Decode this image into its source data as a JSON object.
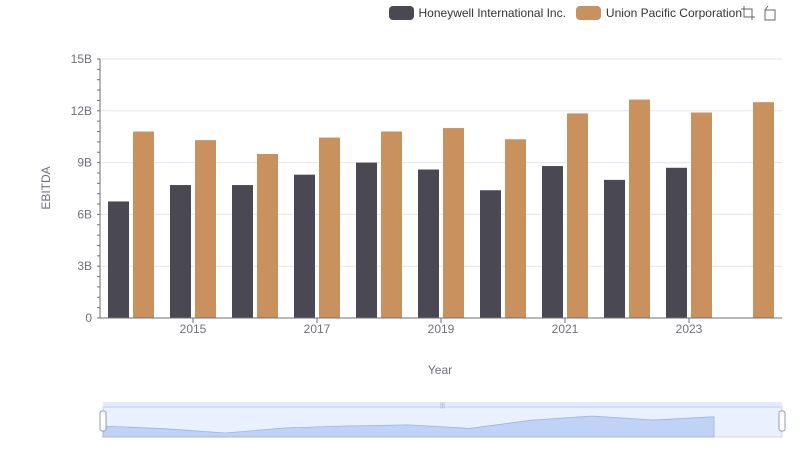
{
  "legend": {
    "items": [
      {
        "name": "Honeywell International Inc.",
        "color": "#4a4953"
      },
      {
        "name": "Union Pacific Corporation",
        "color": "#c8915d"
      }
    ]
  },
  "toolbox": {
    "icons": [
      "zoom-icon",
      "restore-icon"
    ]
  },
  "chart_data": {
    "type": "bar",
    "xlabel": "Year",
    "ylabel": "EBITDA",
    "ylim": [
      0,
      15000000000
    ],
    "yticks": [
      {
        "value": 0,
        "label": "0"
      },
      {
        "value": 3000000000,
        "label": "3B"
      },
      {
        "value": 6000000000,
        "label": "6B"
      },
      {
        "value": 9000000000,
        "label": "9B"
      },
      {
        "value": 12000000000,
        "label": "12B"
      },
      {
        "value": 15000000000,
        "label": "15B"
      }
    ],
    "categories": [
      "2014",
      "2015",
      "2016",
      "2017",
      "2018",
      "2019",
      "2020",
      "2021",
      "2022",
      "2023",
      "2024"
    ],
    "xtick_labels": [
      "2015",
      "2017",
      "2019",
      "2021",
      "2023"
    ],
    "grid": true,
    "legend_position": "top-right",
    "series": [
      {
        "name": "Honeywell International Inc.",
        "color": "#4a4953",
        "values": [
          6750000000,
          7700000000,
          7700000000,
          8300000000,
          9000000000,
          8600000000,
          7400000000,
          8800000000,
          8000000000,
          8700000000,
          null
        ]
      },
      {
        "name": "Union Pacific Corporation",
        "color": "#c8915d",
        "values": [
          10800000000,
          10300000000,
          9500000000,
          10450000000,
          10800000000,
          11000000000,
          10350000000,
          11850000000,
          12650000000,
          11900000000,
          12500000000
        ]
      }
    ]
  }
}
